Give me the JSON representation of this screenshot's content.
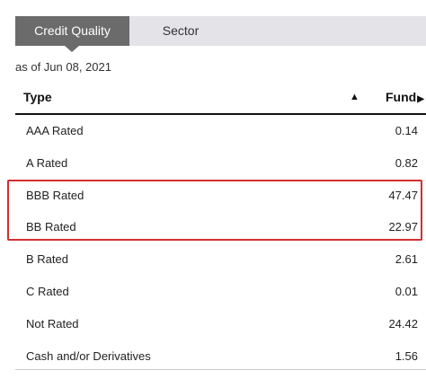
{
  "tabs": [
    {
      "label": "Credit Quality",
      "active": true
    },
    {
      "label": "Sector",
      "active": false
    }
  ],
  "as_of": "as of Jun 08, 2021",
  "table": {
    "header_type": "Type",
    "header_sort_icon": "▲",
    "header_fund": "Fund",
    "header_fund_arrow": "▶",
    "rows": [
      {
        "label": "AAA Rated",
        "value": "0.14"
      },
      {
        "label": "A Rated",
        "value": "0.82"
      },
      {
        "label": "BBB Rated",
        "value": "47.47"
      },
      {
        "label": "BB Rated",
        "value": "22.97"
      },
      {
        "label": "B Rated",
        "value": "2.61"
      },
      {
        "label": "C Rated",
        "value": "0.01"
      },
      {
        "label": "Not Rated",
        "value": "24.42"
      },
      {
        "label": "Cash and/or Derivatives",
        "value": "1.56"
      }
    ]
  },
  "colors": {
    "tab_active_bg": "#6b6b6b",
    "tab_bar_bg": "#e3e3e8",
    "highlight_border": "#d32f2f"
  }
}
